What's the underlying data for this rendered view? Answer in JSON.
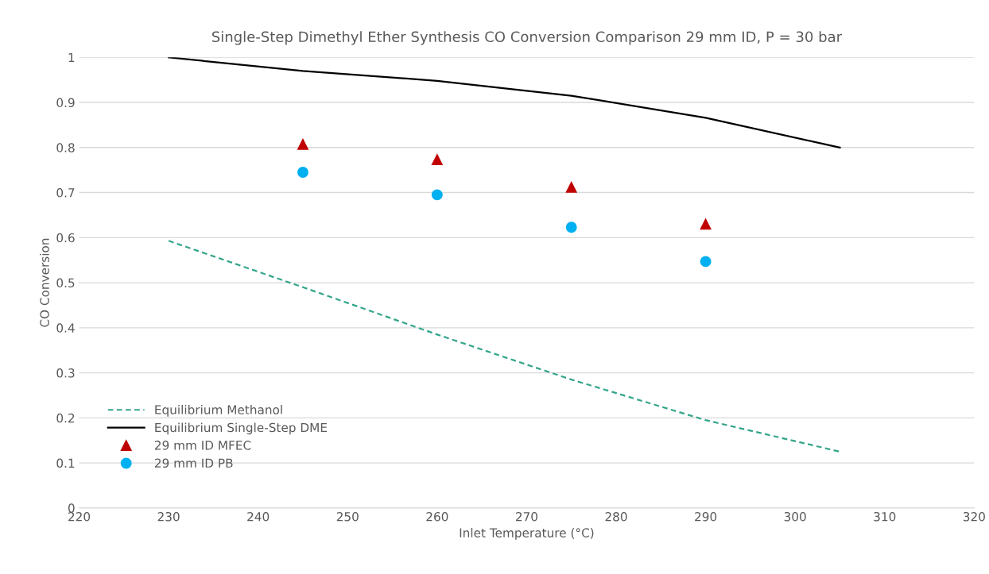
{
  "chart_data": {
    "type": "line",
    "title": "Single-Step Dimethyl Ether Synthesis CO Conversion Comparison 29 mm ID, P = 30 bar",
    "xlabel": "Inlet Temperature (°C)",
    "ylabel": "CO Conversion",
    "xlim": [
      220,
      320
    ],
    "xticks": [
      220,
      230,
      240,
      250,
      260,
      270,
      280,
      290,
      300,
      310,
      320
    ],
    "ylim": [
      0,
      1
    ],
    "yticks": [
      0,
      0.1,
      0.2,
      0.3,
      0.4,
      0.5,
      0.6,
      0.7,
      0.8,
      0.9,
      1
    ],
    "grid": "y",
    "legend": "lower left",
    "series": [
      {
        "name": "Equilibrium Methanol",
        "line_style": "dashed",
        "color": "#33a58a",
        "x": [
          230,
          245,
          260,
          275,
          290,
          305
        ],
        "values": [
          0.593,
          0.49,
          0.385,
          0.285,
          0.195,
          0.125
        ]
      },
      {
        "name": "Equilibrium Single-Step DME",
        "line_style": "solid",
        "color": "#000000",
        "x": [
          230,
          245,
          260,
          275,
          290,
          305
        ],
        "values": [
          1.0,
          0.97,
          0.948,
          0.915,
          0.866,
          0.8
        ]
      },
      {
        "name": "29 mm ID MFEC",
        "type": "scatter",
        "marker": "triangle",
        "color": "#c00000",
        "x": [
          245,
          260,
          275,
          290
        ],
        "values": [
          0.807,
          0.773,
          0.712,
          0.63
        ]
      },
      {
        "name": "29 mm ID PB",
        "type": "scatter",
        "marker": "circle",
        "color": "#00b0f0",
        "x": [
          245,
          260,
          275,
          290
        ],
        "values": [
          0.745,
          0.695,
          0.623,
          0.547
        ]
      }
    ]
  }
}
